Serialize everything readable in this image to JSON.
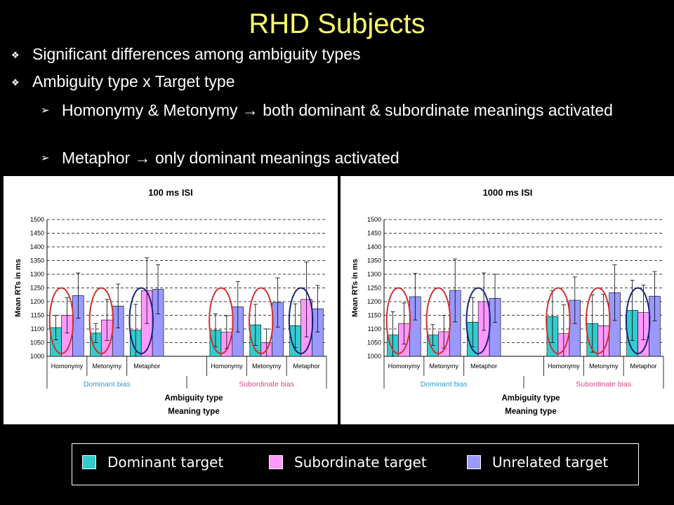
{
  "slide": {
    "title": "RHD Subjects",
    "bullets": [
      "Significant differences among ambiguity types",
      "Ambiguity type x Target type"
    ],
    "sub_bullets": [
      "Homonymy & Metonymy → both dominant & subordinate meanings activated",
      "Metaphor → only dominant meanings activated"
    ],
    "icons": {
      "bullet": "diamond-bullet-icon",
      "sub_bullet": "arrowhead-bullet-icon"
    }
  },
  "legend": {
    "items": [
      {
        "label": "Dominant target",
        "color": "#33cccc"
      },
      {
        "label": "Subordinate target",
        "color": "#ff99ff"
      },
      {
        "label": "Unrelated target",
        "color": "#9999ff"
      }
    ]
  },
  "chart_data": [
    {
      "type": "bar",
      "title": "100 ms ISI",
      "xlabel": "Ambiguity type",
      "xlabel2": "Meaning type",
      "ylabel": "Mean RTs in ms",
      "ylim": [
        1000,
        1500
      ],
      "yticks": [
        1000,
        1050,
        1100,
        1150,
        1200,
        1250,
        1300,
        1350,
        1400,
        1450,
        1500
      ],
      "grid": "dashed horizontal",
      "groups": [
        "Dominant bias",
        "Subordinate bias"
      ],
      "categories": [
        "Homonymy",
        "Metonymy",
        "Metaphor"
      ],
      "series": [
        {
          "color": "#33cccc",
          "values": [
            [
              1105,
              1085,
              1095
            ],
            [
              1095,
              1115,
              1112
            ]
          ],
          "errors": [
            [
              45,
              35,
              95
            ],
            [
              60,
              75,
              80
            ]
          ]
        },
        {
          "color": "#ff99ff",
          "values": [
            [
              1150,
              1133,
              1240
            ],
            [
              1088,
              1050,
              1208
            ]
          ],
          "errors": [
            [
              65,
              75,
              120
            ],
            [
              60,
              50,
              137
            ]
          ]
        },
        {
          "color": "#9999ff",
          "values": [
            [
              1222,
              1184,
              1245
            ],
            [
              1181,
              1197,
              1174
            ]
          ],
          "errors": [
            [
              83,
              80,
              90
            ],
            [
              92,
              90,
              85
            ]
          ]
        }
      ],
      "ellipses": [
        {
          "group": 0,
          "category": 0,
          "color": "#d03030"
        },
        {
          "group": 0,
          "category": 1,
          "color": "#d03030"
        },
        {
          "group": 0,
          "category": 2,
          "color": "#1a237e"
        },
        {
          "group": 1,
          "category": 0,
          "color": "#d03030"
        },
        {
          "group": 1,
          "category": 1,
          "color": "#d03030"
        },
        {
          "group": 1,
          "category": 2,
          "color": "#1a237e"
        }
      ]
    },
    {
      "type": "bar",
      "title": "1000 ms ISI",
      "xlabel": "Ambiguity type",
      "xlabel2": "Meaning type",
      "ylabel": "Mean RTs in ms",
      "ylim": [
        1000,
        1500
      ],
      "yticks": [
        1000,
        1050,
        1100,
        1150,
        1200,
        1250,
        1300,
        1350,
        1400,
        1450,
        1500
      ],
      "grid": "dashed horizontal",
      "groups": [
        "Dominant bias",
        "Subordinate bias"
      ],
      "categories": [
        "Homonymy",
        "Metonymy",
        "Metaphor"
      ],
      "series": [
        {
          "color": "#33cccc",
          "values": [
            [
              1078,
              1078,
              1125
            ],
            [
              1145,
              1120,
              1168
            ]
          ],
          "errors": [
            [
              85,
              38,
              90
            ],
            [
              95,
              105,
              110
            ]
          ]
        },
        {
          "color": "#ff99ff",
          "values": [
            [
              1120,
              1090,
              1200
            ],
            [
              1083,
              1112,
              1160
            ]
          ],
          "errors": [
            [
              75,
              60,
              105
            ],
            [
              105,
              115,
              100
            ]
          ]
        },
        {
          "color": "#9999ff",
          "values": [
            [
              1218,
              1241,
              1212
            ],
            [
              1205,
              1233,
              1220
            ]
          ],
          "errors": [
            [
              85,
              115,
              88
            ],
            [
              85,
              102,
              90
            ]
          ]
        }
      ],
      "ellipses": [
        {
          "group": 0,
          "category": 0,
          "color": "#d03030"
        },
        {
          "group": 0,
          "category": 1,
          "color": "#d03030"
        },
        {
          "group": 0,
          "category": 2,
          "color": "#1a237e"
        },
        {
          "group": 1,
          "category": 0,
          "color": "#d03030"
        },
        {
          "group": 1,
          "category": 1,
          "color": "#d03030"
        },
        {
          "group": 1,
          "category": 2,
          "color": "#1a237e"
        }
      ]
    }
  ]
}
